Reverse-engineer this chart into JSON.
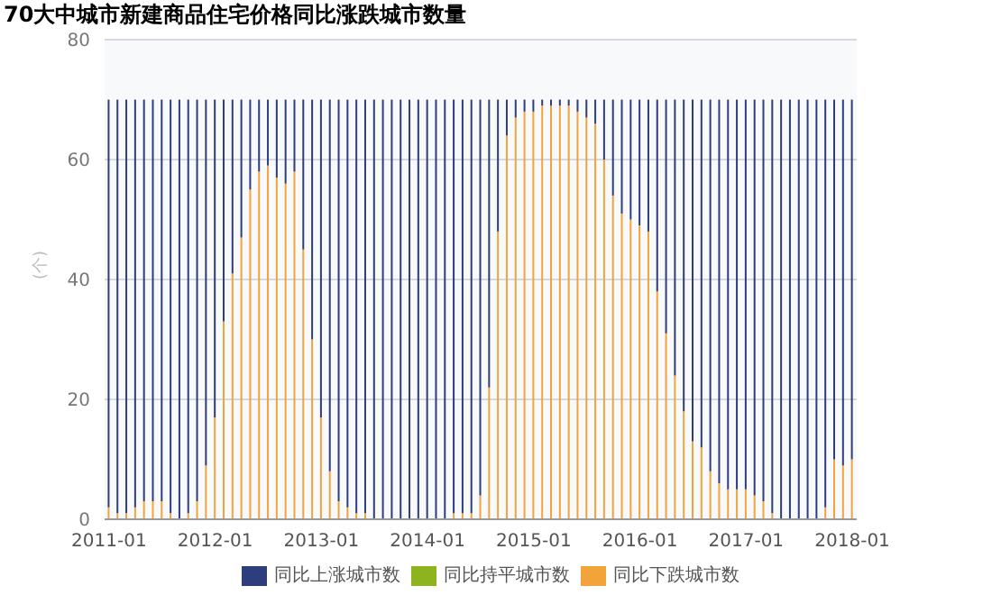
{
  "chart_data": {
    "type": "bar",
    "title": "70大中城市新建商品住宅价格同比涨跌城市数量",
    "ylabel": "(个)",
    "stacked": true,
    "categories": [
      "2011-01",
      null,
      null,
      null,
      null,
      null,
      null,
      null,
      null,
      null,
      null,
      null,
      "2012-01",
      null,
      null,
      null,
      null,
      null,
      null,
      null,
      null,
      null,
      null,
      null,
      "2013-01",
      null,
      null,
      null,
      null,
      null,
      null,
      null,
      null,
      null,
      null,
      null,
      "2014-01",
      null,
      null,
      null,
      null,
      null,
      null,
      null,
      null,
      null,
      null,
      null,
      "2015-01",
      null,
      null,
      null,
      null,
      null,
      null,
      null,
      null,
      null,
      null,
      null,
      "2016-01",
      null,
      null,
      null,
      null,
      null,
      null,
      null,
      null,
      null,
      null,
      null,
      "2017-01",
      null,
      null,
      null,
      null,
      null,
      null,
      null,
      null,
      null,
      null,
      null,
      "2018-01"
    ],
    "series": [
      {
        "name": "同比下跌城市数",
        "color": "#f2a43a",
        "values": [
          2,
          1,
          1,
          2,
          3,
          3,
          3,
          1,
          0,
          1,
          3,
          9,
          17,
          33,
          41,
          47,
          55,
          58,
          59,
          57,
          56,
          58,
          45,
          30,
          17,
          8,
          3,
          2,
          1,
          1,
          0,
          0,
          0,
          0,
          0,
          0,
          0,
          0,
          0,
          1,
          1,
          1,
          4,
          22,
          48,
          64,
          67,
          68,
          68,
          69,
          69,
          69,
          69,
          68,
          67,
          66,
          60,
          54,
          51,
          50,
          49,
          48,
          38,
          31,
          24,
          18,
          13,
          12,
          8,
          6,
          5,
          5,
          5,
          4,
          3,
          1,
          0,
          0,
          0,
          0,
          0,
          2,
          10,
          9,
          10
        ]
      },
      {
        "name": "同比持平城市数",
        "color": "#8db31e",
        "values": [
          0,
          0,
          0,
          0,
          0,
          0,
          0,
          0,
          0,
          0,
          0,
          0,
          0,
          0,
          0,
          0,
          0,
          0,
          0,
          0,
          0,
          0,
          0,
          0,
          0,
          0,
          0,
          0,
          0,
          0,
          0,
          0,
          0,
          0,
          0,
          0,
          0,
          0,
          0,
          0,
          0,
          0,
          0,
          0,
          0,
          0,
          0,
          0,
          0,
          0,
          0,
          0,
          0,
          0,
          0,
          0,
          0,
          0,
          0,
          0,
          0,
          0,
          0,
          0,
          0,
          0,
          0,
          0,
          0,
          0,
          0,
          0,
          0,
          0,
          0,
          0,
          0,
          0,
          0,
          0,
          0,
          0,
          0,
          0,
          0
        ]
      },
      {
        "name": "同比上涨城市数",
        "color": "#2e3d7c",
        "values": [
          68,
          69,
          69,
          68,
          67,
          67,
          67,
          69,
          70,
          69,
          67,
          61,
          53,
          37,
          29,
          23,
          15,
          12,
          11,
          13,
          14,
          12,
          25,
          40,
          53,
          62,
          67,
          68,
          69,
          69,
          70,
          70,
          70,
          70,
          70,
          70,
          70,
          70,
          70,
          69,
          69,
          69,
          66,
          48,
          22,
          6,
          3,
          2,
          2,
          1,
          1,
          1,
          1,
          2,
          3,
          4,
          10,
          16,
          19,
          20,
          21,
          22,
          32,
          39,
          46,
          52,
          57,
          58,
          62,
          64,
          65,
          65,
          65,
          66,
          67,
          69,
          70,
          70,
          70,
          70,
          70,
          68,
          60,
          61,
          60
        ]
      }
    ],
    "ylim": [
      0,
      80
    ],
    "yticks": [
      0,
      20,
      40,
      60,
      80
    ],
    "grid": "y",
    "legend": "bottom"
  }
}
